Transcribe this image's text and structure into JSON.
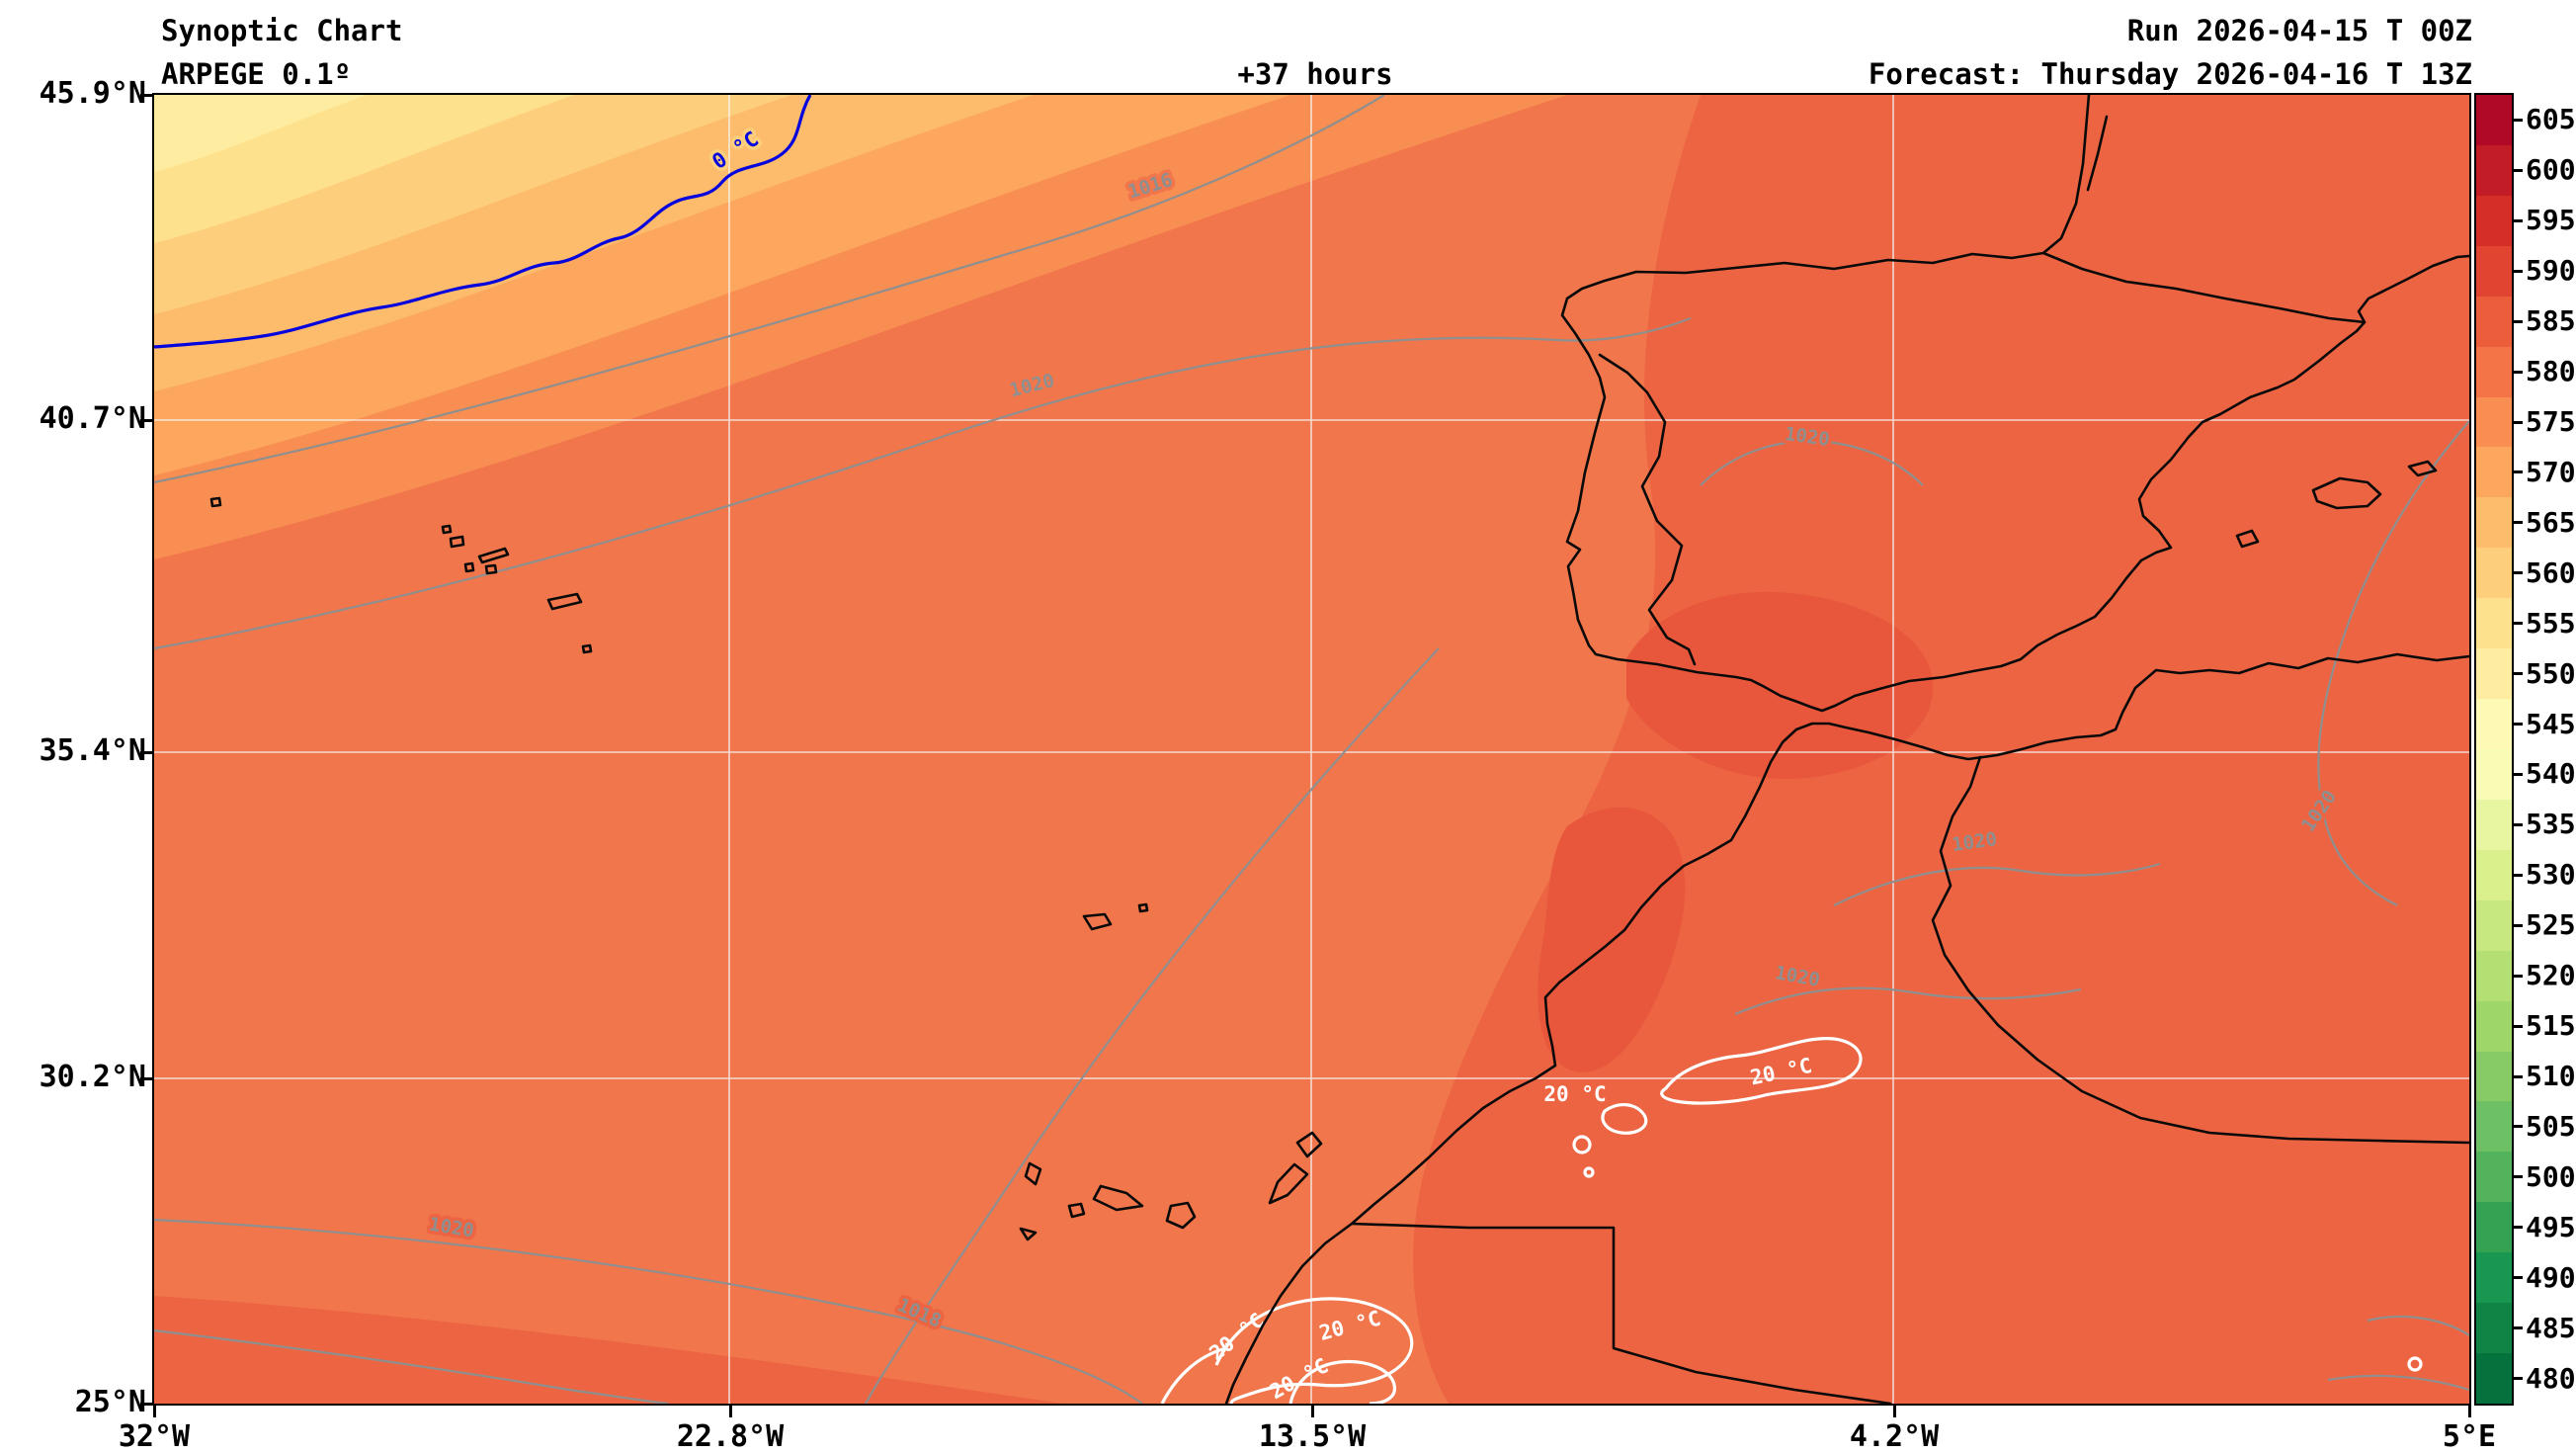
{
  "header": {
    "title": "Synoptic Chart",
    "subtitle": "ARPEGE 0.1º",
    "lead_time": "+37 hours",
    "run": "Run 2026-04-15 T 00Z",
    "forecast": "Forecast: Thursday 2026-04-16 T 13Z"
  },
  "axes": {
    "lat_ticks": [
      "45.9°N",
      "40.7°N",
      "35.4°N",
      "30.2°N",
      "25°N"
    ],
    "lon_ticks": [
      "32°W",
      "22.8°W",
      "13.5°W",
      "4.2°W",
      "5°E"
    ]
  },
  "map_labels": {
    "isobar_1016": "1016",
    "isobar_1020": "1020",
    "isobar_1018": "1018",
    "temp_zero": "0 °C",
    "temp_twenty": "20 °C"
  },
  "chart_data": {
    "type": "heatmap",
    "title": "Synoptic Chart",
    "model": "ARPEGE 0.1º",
    "lead_time_hours": 37,
    "run": "2026-04-15 00Z",
    "valid": "Thursday 2026-04-16 13Z",
    "lon_range_deg": [
      -32,
      5
    ],
    "lat_range_deg": [
      25,
      45.9
    ],
    "lon_tick_values_deg": [
      -32,
      -22.8,
      -13.5,
      -4.2,
      5
    ],
    "lat_tick_values_deg": [
      45.9,
      40.7,
      35.4,
      30.2,
      25
    ],
    "isobar_values_hpa": [
      1016,
      1020,
      1018
    ],
    "temperature_contour_values_c": [
      0,
      20
    ],
    "colorbar": {
      "levels": [
        605,
        600,
        595,
        590,
        585,
        580,
        575,
        570,
        565,
        560,
        555,
        550,
        545,
        540,
        535,
        530,
        525,
        520,
        515,
        510,
        505,
        500,
        495,
        490,
        485,
        480
      ],
      "colors": [
        "#af0926",
        "#c21c27",
        "#d52e27",
        "#e14531",
        "#ec5d3b",
        "#f57447",
        "#f98e52",
        "#fca65e",
        "#fdbb6c",
        "#fdcf7d",
        "#fee18d",
        "#feeda1",
        "#fef9b5",
        "#f8fcb5",
        "#e9f6a1",
        "#daf08d",
        "#c7e780",
        "#b3df73",
        "#9ed669",
        "#86cb66",
        "#6dc064",
        "#52b35c",
        "#35a253",
        "#19964f",
        "#0f8445",
        "#05713c"
      ]
    },
    "fill_colors": {
      "base_580": "#f1764c",
      "band_575": "#f98e52",
      "band_570": "#fca65e",
      "band_565": "#fdbb6c",
      "band_560": "#fdcf7d",
      "band_555": "#fee18d",
      "band_550": "#feeda1",
      "region_585": "#ec6442",
      "region_590": "#e8573b"
    },
    "line_colors": {
      "coastline": "#0a0a0a",
      "isobar": "#8f8f8f",
      "freezing_level": "#0404dd",
      "warm_contour": "#ffffff",
      "grid": "#f5f5f5"
    }
  }
}
